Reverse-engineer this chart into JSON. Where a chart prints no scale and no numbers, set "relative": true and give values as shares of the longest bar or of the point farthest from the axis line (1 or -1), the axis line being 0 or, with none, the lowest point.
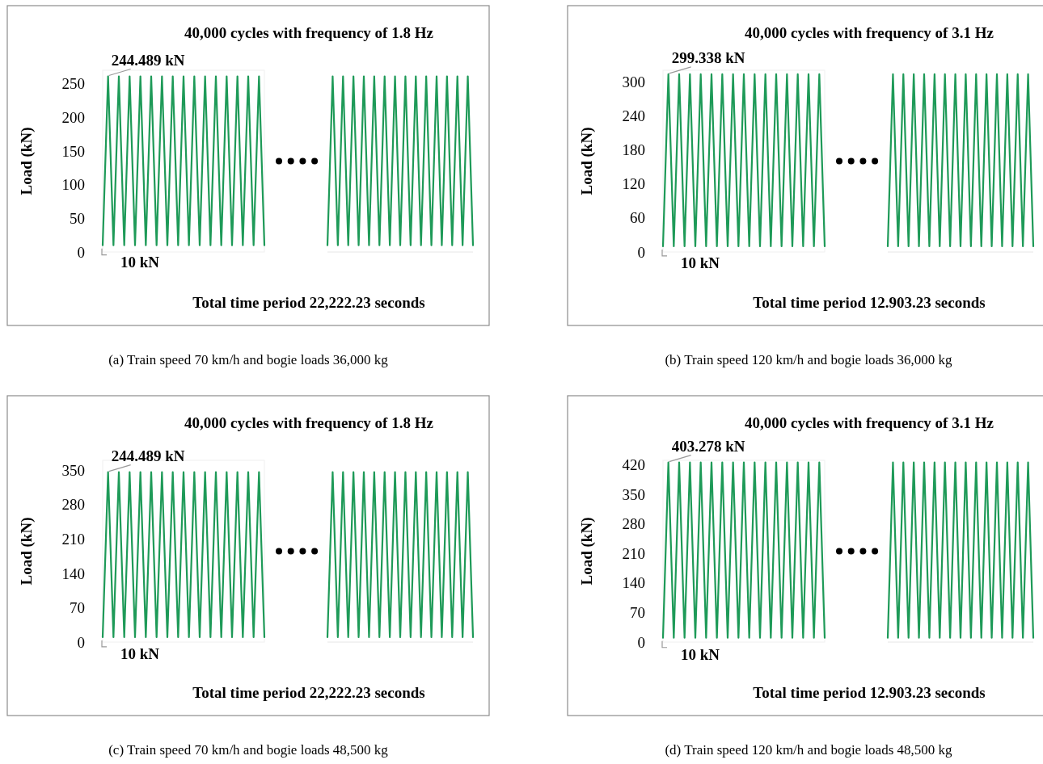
{
  "chart_data": [
    {
      "type": "line",
      "title": "40,000 cycles with frequency of 1.8 Hz",
      "xlabel": "Total time period 22,222.23 seconds",
      "ylabel": "Load (kN)",
      "categories": [
        null,
        null,
        null,
        null,
        null,
        null,
        null,
        null,
        null,
        null,
        null,
        null,
        null,
        null,
        null,
        null,
        null,
        null,
        null,
        null,
        null,
        null,
        null,
        null,
        null,
        null,
        null,
        null,
        null,
        null,
        null
      ],
      "series": [
        {
          "color": "#1e9a58",
          "values": [
            10,
            261,
            10,
            261,
            10,
            261,
            10,
            261,
            10,
            261,
            10,
            261,
            10,
            261,
            10,
            261,
            10,
            261,
            10,
            261,
            10,
            261,
            10,
            261,
            10,
            261,
            10,
            261,
            10,
            261,
            10
          ]
        }
      ],
      "ylim": [
        0,
        270
      ],
      "yticks": [
        0,
        50,
        100,
        150,
        200,
        250
      ],
      "tick_labels": "y",
      "grid": false,
      "marker": "none",
      "line_style": "solid",
      "annotations": [
        "244.489 kN",
        "10 kN",
        "(a) Train speed 70 km/h and bogie loads 36,000 kg"
      ]
    },
    {
      "type": "line",
      "categories": [
        null,
        null,
        null,
        null,
        null,
        null,
        null,
        null,
        null,
        null,
        null,
        null,
        null,
        null,
        null,
        null,
        null,
        null,
        null,
        null,
        null,
        null,
        null,
        null,
        null,
        null,
        null,
        null,
        null
      ],
      "series": [
        {
          "color": "#1e9a58",
          "values": [
            0.038,
            1,
            0.038,
            1,
            0.038,
            1,
            0.038,
            1,
            0.038,
            1,
            0.038,
            1,
            0.038,
            1,
            0.038,
            1,
            0.038,
            1,
            0.038,
            1,
            0.038,
            1,
            0.038,
            1,
            0.038,
            1,
            0.038,
            1,
            0.038
          ]
        }
      ],
      "relative": true,
      "tick_labels": false,
      "grid": false,
      "marker": "none",
      "line_style": "solid"
    },
    {
      "type": "line",
      "title": "40,000 cycles with frequency of 3.1 Hz",
      "xlabel": "Total time period 12.903.23 seconds",
      "ylabel": "Load (kN)",
      "categories": [
        null,
        null,
        null,
        null,
        null,
        null,
        null,
        null,
        null,
        null,
        null,
        null,
        null,
        null,
        null,
        null,
        null,
        null,
        null,
        null,
        null,
        null,
        null,
        null,
        null,
        null,
        null,
        null,
        null,
        null,
        null
      ],
      "series": [
        {
          "color": "#1e9a58",
          "values": [
            10,
            313,
            10,
            313,
            10,
            313,
            10,
            313,
            10,
            313,
            10,
            313,
            10,
            313,
            10,
            313,
            10,
            313,
            10,
            313,
            10,
            313,
            10,
            313,
            10,
            313,
            10,
            313,
            10,
            313,
            10
          ]
        }
      ],
      "ylim": [
        0,
        320
      ],
      "yticks": [
        0,
        60,
        120,
        180,
        240,
        300
      ],
      "tick_labels": "y",
      "grid": false,
      "marker": "none",
      "line_style": "solid",
      "annotations": [
        "299.338 kN",
        "10 kN",
        "(b) Train speed 120 km/h and bogie loads 36,000 kg"
      ]
    },
    {
      "type": "line",
      "categories": [
        null,
        null,
        null,
        null,
        null,
        null,
        null,
        null,
        null,
        null,
        null,
        null,
        null,
        null,
        null,
        null,
        null,
        null,
        null,
        null,
        null,
        null,
        null,
        null,
        null,
        null,
        null,
        null,
        null
      ],
      "series": [
        {
          "color": "#1e9a58",
          "values": [
            0.032,
            1,
            0.032,
            1,
            0.032,
            1,
            0.032,
            1,
            0.032,
            1,
            0.032,
            1,
            0.032,
            1,
            0.032,
            1,
            0.032,
            1,
            0.032,
            1,
            0.032,
            1,
            0.032,
            1,
            0.032,
            1,
            0.032,
            1,
            0.032
          ]
        }
      ],
      "relative": true,
      "tick_labels": false,
      "grid": false,
      "marker": "none",
      "line_style": "solid"
    },
    {
      "type": "line",
      "title": "40,000 cycles with frequency of 1.8 Hz",
      "xlabel": "Total time period 22,222.23 seconds",
      "ylabel": "Load (kN)",
      "categories": [
        null,
        null,
        null,
        null,
        null,
        null,
        null,
        null,
        null,
        null,
        null,
        null,
        null,
        null,
        null,
        null,
        null,
        null,
        null,
        null,
        null,
        null,
        null,
        null,
        null,
        null,
        null,
        null,
        null,
        null,
        null
      ],
      "series": [
        {
          "color": "#1e9a58",
          "values": [
            10,
            346,
            10,
            346,
            10,
            346,
            10,
            346,
            10,
            346,
            10,
            346,
            10,
            346,
            10,
            346,
            10,
            346,
            10,
            346,
            10,
            346,
            10,
            346,
            10,
            346,
            10,
            346,
            10,
            346,
            10
          ]
        }
      ],
      "ylim": [
        0,
        370
      ],
      "yticks": [
        0,
        70,
        140,
        210,
        280,
        350
      ],
      "tick_labels": "y",
      "grid": false,
      "marker": "none",
      "line_style": "solid",
      "annotations": [
        "244.489 kN",
        "10 kN",
        "(c) Train speed 70 km/h and bogie loads 48,500 kg"
      ]
    },
    {
      "type": "line",
      "categories": [
        null,
        null,
        null,
        null,
        null,
        null,
        null,
        null,
        null,
        null,
        null,
        null,
        null,
        null,
        null,
        null,
        null,
        null,
        null,
        null,
        null,
        null,
        null,
        null,
        null,
        null,
        null,
        null,
        null
      ],
      "series": [
        {
          "color": "#1e9a58",
          "values": [
            0.029,
            1,
            0.029,
            1,
            0.029,
            1,
            0.029,
            1,
            0.029,
            1,
            0.029,
            1,
            0.029,
            1,
            0.029,
            1,
            0.029,
            1,
            0.029,
            1,
            0.029,
            1,
            0.029,
            1,
            0.029,
            1,
            0.029,
            1,
            0.029
          ]
        }
      ],
      "relative": true,
      "tick_labels": false,
      "grid": false,
      "marker": "none",
      "line_style": "solid"
    },
    {
      "type": "line",
      "title": "40,000 cycles with frequency of 3.1 Hz",
      "xlabel": "Total time period 12.903.23 seconds",
      "ylabel": "Load (kN)",
      "categories": [
        null,
        null,
        null,
        null,
        null,
        null,
        null,
        null,
        null,
        null,
        null,
        null,
        null,
        null,
        null,
        null,
        null,
        null,
        null,
        null,
        null,
        null,
        null,
        null,
        null,
        null,
        null,
        null,
        null,
        null,
        null
      ],
      "series": [
        {
          "color": "#1e9a58",
          "values": [
            10,
            425,
            10,
            425,
            10,
            425,
            10,
            425,
            10,
            425,
            10,
            425,
            10,
            425,
            10,
            425,
            10,
            425,
            10,
            425,
            10,
            425,
            10,
            425,
            10,
            425,
            10,
            425,
            10,
            425,
            10
          ]
        }
      ],
      "ylim": [
        0,
        430
      ],
      "yticks": [
        0,
        70,
        140,
        210,
        280,
        350,
        420
      ],
      "tick_labels": "y",
      "grid": false,
      "marker": "none",
      "line_style": "solid",
      "annotations": [
        "403.278 kN",
        "10 kN",
        "(d) Train speed 120 km/h and bogie loads 48,500 kg"
      ]
    },
    {
      "type": "line",
      "categories": [
        null,
        null,
        null,
        null,
        null,
        null,
        null,
        null,
        null,
        null,
        null,
        null,
        null,
        null,
        null,
        null,
        null,
        null,
        null,
        null,
        null,
        null,
        null,
        null,
        null,
        null,
        null,
        null,
        null
      ],
      "series": [
        {
          "color": "#1e9a58",
          "values": [
            0.024,
            1,
            0.024,
            1,
            0.024,
            1,
            0.024,
            1,
            0.024,
            1,
            0.024,
            1,
            0.024,
            1,
            0.024,
            1,
            0.024,
            1,
            0.024,
            1,
            0.024,
            1,
            0.024,
            1,
            0.024,
            1,
            0.024,
            1,
            0.024
          ]
        }
      ],
      "relative": true,
      "tick_labels": false,
      "grid": false,
      "marker": "none",
      "line_style": "solid"
    }
  ]
}
